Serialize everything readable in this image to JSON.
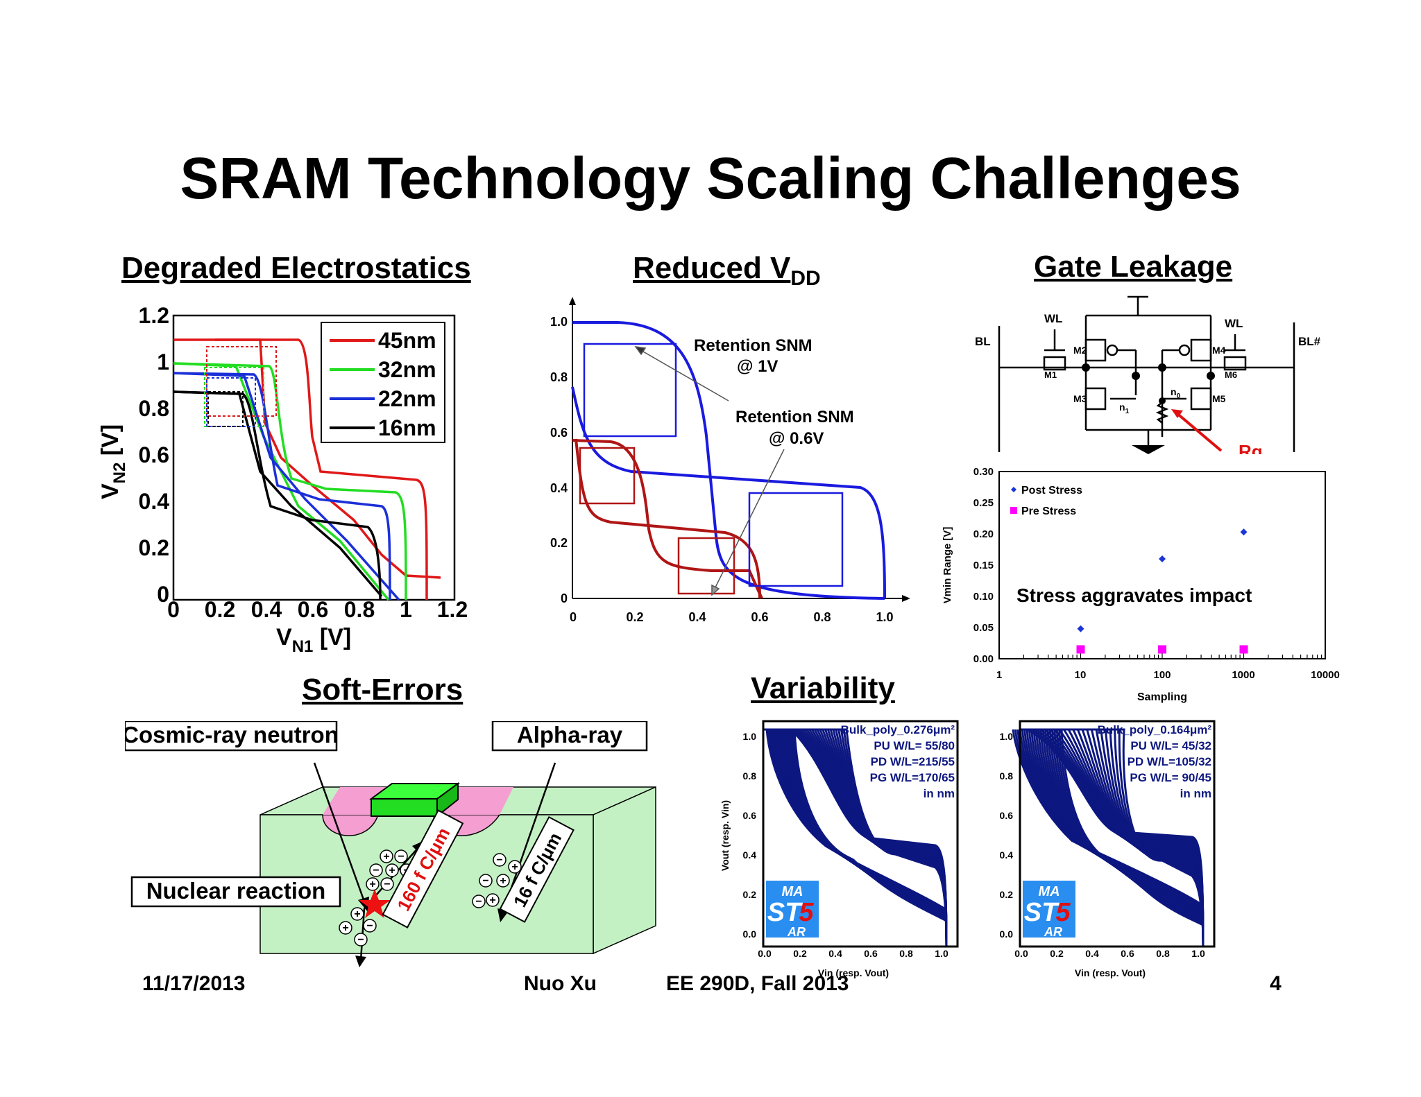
{
  "slide": {
    "title": "SRAM Technology Scaling Challenges",
    "footer": {
      "date": "11/17/2013",
      "author": "Nuo Xu",
      "course": "EE 290D, Fall 2013",
      "page": "4"
    }
  },
  "sections": {
    "electrostatics": {
      "heading": "Degraded Electrostatics"
    },
    "vdd": {
      "heading_main": "Reduced V",
      "heading_sub": "DD"
    },
    "leakage": {
      "heading": "Gate Leakage"
    },
    "softerrors": {
      "heading": "Soft-Errors"
    },
    "variability": {
      "heading": "Variability"
    }
  },
  "butterfly_chart": {
    "ylabel_main": "V",
    "ylabel_sub": "N2",
    "ylabel_unit": " [V]",
    "xlabel_main": "V",
    "xlabel_sub": "N1",
    "xlabel_unit": " [V]",
    "ticks": [
      "0",
      "0.2",
      "0.4",
      "0.6",
      "0.8",
      "1",
      "1.2"
    ],
    "legend": [
      "45nm",
      "32nm",
      "22nm",
      "16nm"
    ],
    "colors": [
      "#e01818",
      "#22dd22",
      "#1b2fd8",
      "#000000"
    ]
  },
  "snm_chart": {
    "ticks_y": [
      "1.0",
      "0.8",
      "0.6",
      "0.4",
      "0.2",
      "0"
    ],
    "ticks_x": [
      "0",
      "0.2",
      "0.4",
      "0.6",
      "0.8",
      "1.0"
    ],
    "annotation_1v": [
      "Retention SNM",
      "@ 1V"
    ],
    "annotation_06v": [
      "Retention SNM",
      "@ 0.6V"
    ],
    "colors": {
      "blue": "#1a1adf",
      "red": "#b01515"
    }
  },
  "circuit": {
    "labels": {
      "bl": "BL",
      "blb": "BL#",
      "wl": "WL",
      "m1": "M1",
      "m2": "M2",
      "m3": "M3",
      "m4": "M4",
      "m5": "M5",
      "m6": "M6",
      "n1": "n",
      "n1_sub": "1",
      "n0": "n",
      "n0_sub": "0",
      "rg": "Rg"
    }
  },
  "leakage_chart": {
    "ylabel": "Vmin Range [V]",
    "xlabel": "Sampling",
    "yticks": [
      "0.30",
      "0.25",
      "0.20",
      "0.15",
      "0.10",
      "0.05",
      "0.00"
    ],
    "xticks": [
      "1",
      "10",
      "100",
      "1000",
      "10000"
    ],
    "legend": [
      "Post Stress",
      "Pre Stress"
    ],
    "annotation": "Stress aggravates impact",
    "post_stress": [
      {
        "x": 10,
        "y": 0.048
      },
      {
        "x": 100,
        "y": 0.16
      },
      {
        "x": 1000,
        "y": 0.203
      }
    ],
    "pre_stress": [
      {
        "x": 10,
        "y": 0.015
      },
      {
        "x": 100,
        "y": 0.015
      },
      {
        "x": 1000,
        "y": 0.015
      }
    ],
    "colors": {
      "post": "#1a35d8",
      "pre": "#ff00ff"
    }
  },
  "soft_errors": {
    "cosmic": "Cosmic-ray neutron",
    "alpha": "Alpha-ray",
    "nuclear": "Nuclear reaction",
    "charge_160": "160 f C/μm",
    "charge_16": "16 f  C/μm"
  },
  "variability_charts": [
    {
      "label": "Bulk_poly_0.276μm²",
      "lines": [
        "PU W/L=  55/80",
        "PD W/L=215/55",
        "PG W/L=170/65",
        "in nm"
      ]
    },
    {
      "label": "Bulk_poly_0.164μm²",
      "lines": [
        "PU W/L=  45/32",
        "PD W/L=105/32",
        "PG W/L= 90/45",
        "in nm"
      ]
    }
  ],
  "variability_common": {
    "ylabel": "Vout (resp. Vin)",
    "xlabel": "Vin (resp. Vout)",
    "ticks_y": [
      "1.0",
      "0.8",
      "0.6",
      "0.4",
      "0.2",
      "0.0"
    ],
    "ticks_x": [
      "0.0",
      "0.2",
      "0.4",
      "0.6",
      "0.8",
      "1.0"
    ],
    "logo_top": "MA",
    "logo_mid": "ST",
    "logo_num": "5",
    "logo_bot": "AR",
    "color": "#0d1780"
  }
}
